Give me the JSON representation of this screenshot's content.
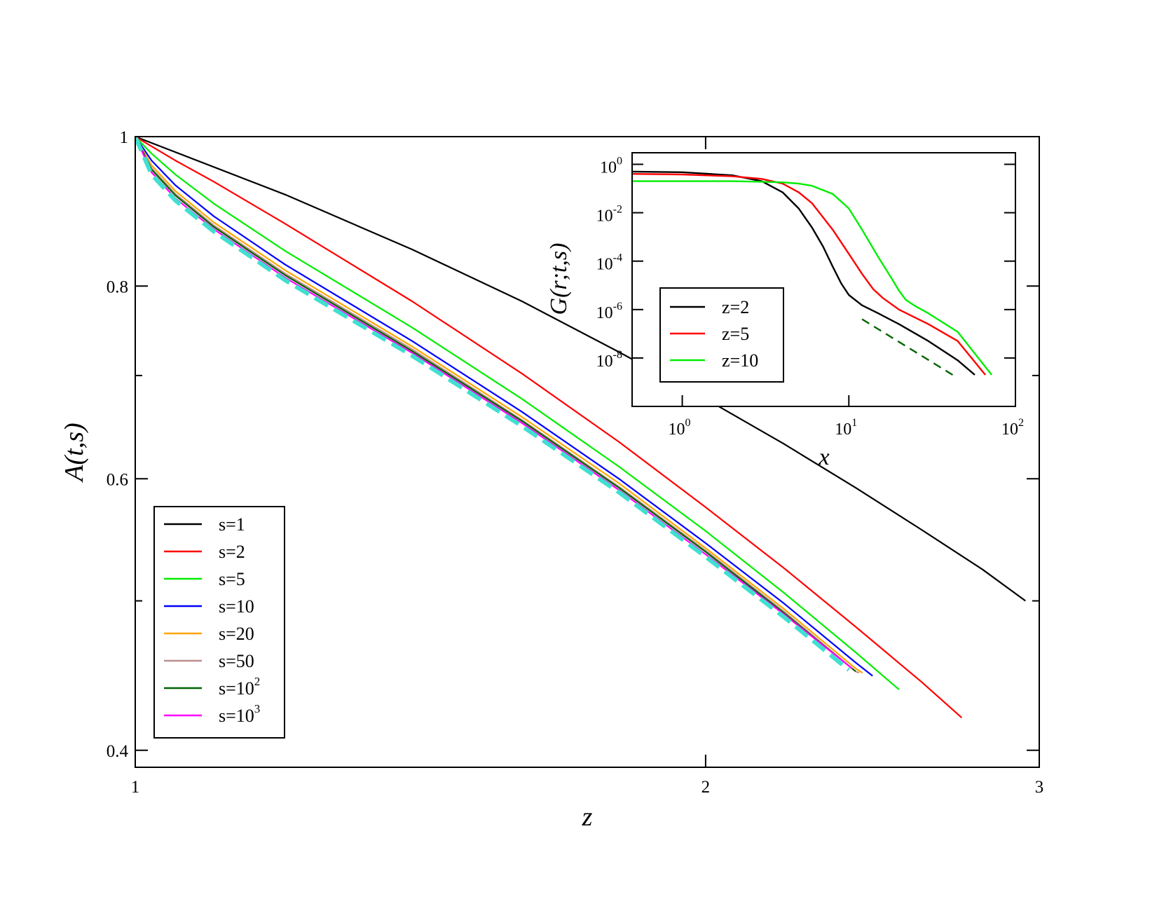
{
  "chart_data": [
    {
      "type": "line",
      "xlabel": "z",
      "ylabel": "A(t,s)",
      "x_scale": "log",
      "y_scale": "log",
      "xlim": [
        1,
        3
      ],
      "ylim": [
        0.39,
        1.0
      ],
      "x_ticks": [
        {
          "value": 1,
          "label": "1"
        },
        {
          "value": 2,
          "label": "2"
        },
        {
          "value": 3,
          "label": "3"
        }
      ],
      "y_ticks": [
        {
          "value": 0.4,
          "label": "0.4"
        },
        {
          "value": 0.6,
          "label": "0.6"
        },
        {
          "value": 0.8,
          "label": "0.8"
        },
        {
          "value": 1.0,
          "label": "1"
        }
      ],
      "grid": false,
      "legend_position": "bottom-left",
      "series": [
        {
          "name": "s=1",
          "legend_base": "s=1",
          "color": "#000000",
          "x": [
            1.0,
            1.2,
            1.4,
            1.6,
            1.8,
            2.0,
            2.2,
            2.4,
            2.6,
            2.8,
            2.95
          ],
          "y": [
            1.0,
            0.917,
            0.845,
            0.782,
            0.725,
            0.676,
            0.632,
            0.592,
            0.556,
            0.524,
            0.5
          ]
        },
        {
          "name": "s=2",
          "legend_base": "s=2",
          "color": "#ff0000",
          "x": [
            1.0,
            1.05,
            1.1,
            1.2,
            1.4,
            1.6,
            1.8,
            2.0,
            2.2,
            2.4,
            2.6,
            2.73
          ],
          "y": [
            1.0,
            0.965,
            0.935,
            0.878,
            0.782,
            0.702,
            0.634,
            0.575,
            0.525,
            0.481,
            0.443,
            0.42
          ]
        },
        {
          "name": "s=5",
          "legend_base": "s=5",
          "color": "#00ee00",
          "x": [
            1.0,
            1.02,
            1.05,
            1.1,
            1.2,
            1.4,
            1.6,
            1.8,
            2.0,
            2.2,
            2.4,
            2.53
          ],
          "y": [
            1.0,
            0.975,
            0.945,
            0.905,
            0.843,
            0.752,
            0.676,
            0.611,
            0.555,
            0.506,
            0.463,
            0.438
          ]
        },
        {
          "name": "s=10",
          "legend_base": "s=10",
          "color": "#0000ff",
          "x": [
            1.0,
            1.02,
            1.05,
            1.1,
            1.2,
            1.4,
            1.6,
            1.8,
            2.0,
            2.2,
            2.4,
            2.45
          ],
          "y": [
            1.0,
            0.965,
            0.93,
            0.888,
            0.826,
            0.737,
            0.663,
            0.6,
            0.545,
            0.498,
            0.456,
            0.447
          ]
        },
        {
          "name": "s=20",
          "legend_base": "s=20",
          "color": "#ffa500",
          "x": [
            1.0,
            1.02,
            1.05,
            1.1,
            1.2,
            1.4,
            1.6,
            1.8,
            2.0,
            2.2,
            2.4,
            2.42
          ],
          "y": [
            1.0,
            0.958,
            0.922,
            0.88,
            0.819,
            0.731,
            0.658,
            0.596,
            0.541,
            0.494,
            0.452,
            0.449
          ]
        },
        {
          "name": "s=50",
          "legend_base": "s=50",
          "color": "#bc8f8f",
          "x": [
            1.0,
            1.02,
            1.05,
            1.1,
            1.2,
            1.4,
            1.6,
            1.8,
            2.0,
            2.2,
            2.4,
            2.41
          ],
          "y": [
            1.0,
            0.954,
            0.918,
            0.876,
            0.815,
            0.728,
            0.655,
            0.593,
            0.539,
            0.492,
            0.45,
            0.449
          ]
        },
        {
          "name": "s=10^2",
          "legend_base": "s=10",
          "legend_sup": "2",
          "color": "#006400",
          "x": [
            1.0,
            1.02,
            1.05,
            1.1,
            1.2,
            1.4,
            1.6,
            1.8,
            2.0,
            2.2,
            2.4
          ],
          "y": [
            1.0,
            0.952,
            0.916,
            0.874,
            0.813,
            0.726,
            0.654,
            0.592,
            0.538,
            0.491,
            0.45
          ]
        },
        {
          "name": "s=10^3",
          "legend_base": "s=10",
          "legend_sup": "3",
          "color": "#ff00ff",
          "x": [
            1.0,
            1.02,
            1.05,
            1.1,
            1.2,
            1.4,
            1.6,
            1.8,
            2.0,
            2.2,
            2.39
          ],
          "y": [
            1.0,
            0.948,
            0.912,
            0.871,
            0.81,
            0.724,
            0.652,
            0.59,
            0.536,
            0.49,
            0.452
          ]
        },
        {
          "name": "",
          "dashed": true,
          "color": "#40e0d0",
          "x": [
            1.0,
            1.02,
            1.05,
            1.1,
            1.2,
            1.4,
            1.6,
            1.8,
            2.0,
            2.2,
            2.38
          ],
          "y": [
            1.0,
            0.945,
            0.909,
            0.868,
            0.807,
            0.721,
            0.649,
            0.588,
            0.534,
            0.488,
            0.451
          ]
        }
      ]
    },
    {
      "type": "line",
      "xlabel": "x",
      "ylabel": "G(r;t,s)",
      "x_scale": "log",
      "y_scale": "log",
      "xlim": [
        0.5,
        100
      ],
      "ylim": [
        1e-10,
        3
      ],
      "x_ticks": [
        {
          "value": 1,
          "base": "10",
          "exp": "0"
        },
        {
          "value": 10,
          "base": "10",
          "exp": "1"
        },
        {
          "value": 100,
          "base": "10",
          "exp": "2"
        }
      ],
      "y_ticks": [
        {
          "value": 1,
          "base": "10",
          "exp": "0"
        },
        {
          "value": 0.01,
          "base": "10",
          "exp": "-2"
        },
        {
          "value": 0.0001,
          "base": "10",
          "exp": "-4"
        },
        {
          "value": 1e-06,
          "base": "10",
          "exp": "-6"
        },
        {
          "value": 1e-08,
          "base": "10",
          "exp": "-8"
        }
      ],
      "grid": false,
      "legend_position": "center-left",
      "series": [
        {
          "name": "z=2",
          "color": "#000000",
          "x": [
            0.5,
            1,
            2,
            3,
            4,
            5,
            6,
            7,
            8,
            9,
            10,
            12,
            15,
            20,
            30,
            45,
            57
          ],
          "y": [
            0.5,
            0.47,
            0.35,
            0.2,
            0.07,
            0.015,
            0.0025,
            0.0004,
            6e-05,
            1.2e-05,
            4e-06,
            1.5e-06,
            7e-07,
            2.5e-07,
            5e-08,
            8e-09,
            2e-09
          ]
        },
        {
          "name": "z=5",
          "color": "#ff0000",
          "x": [
            0.5,
            1,
            2,
            3,
            4,
            5,
            6,
            8,
            10,
            12,
            14,
            16,
            20,
            30,
            45,
            66
          ],
          "y": [
            0.4,
            0.38,
            0.32,
            0.25,
            0.16,
            0.07,
            0.025,
            0.002,
            0.0002,
            3e-05,
            7e-06,
            3e-06,
            1e-06,
            2.5e-07,
            5e-08,
            2e-09
          ]
        },
        {
          "name": "z=10",
          "color": "#00ee00",
          "x": [
            0.5,
            1,
            2,
            3,
            4,
            5,
            6,
            8,
            10,
            12,
            15,
            18,
            20,
            22,
            25,
            30,
            45,
            72
          ],
          "y": [
            0.2,
            0.2,
            0.2,
            0.19,
            0.18,
            0.16,
            0.13,
            0.06,
            0.015,
            0.002,
            0.00015,
            2e-05,
            6e-06,
            2.5e-06,
            1.4e-06,
            7e-07,
            1.2e-07,
            2e-09
          ]
        },
        {
          "name": "",
          "dashed": true,
          "color": "#006400",
          "x": [
            12,
            42
          ],
          "y": [
            4e-07,
            2e-09
          ]
        }
      ]
    }
  ]
}
